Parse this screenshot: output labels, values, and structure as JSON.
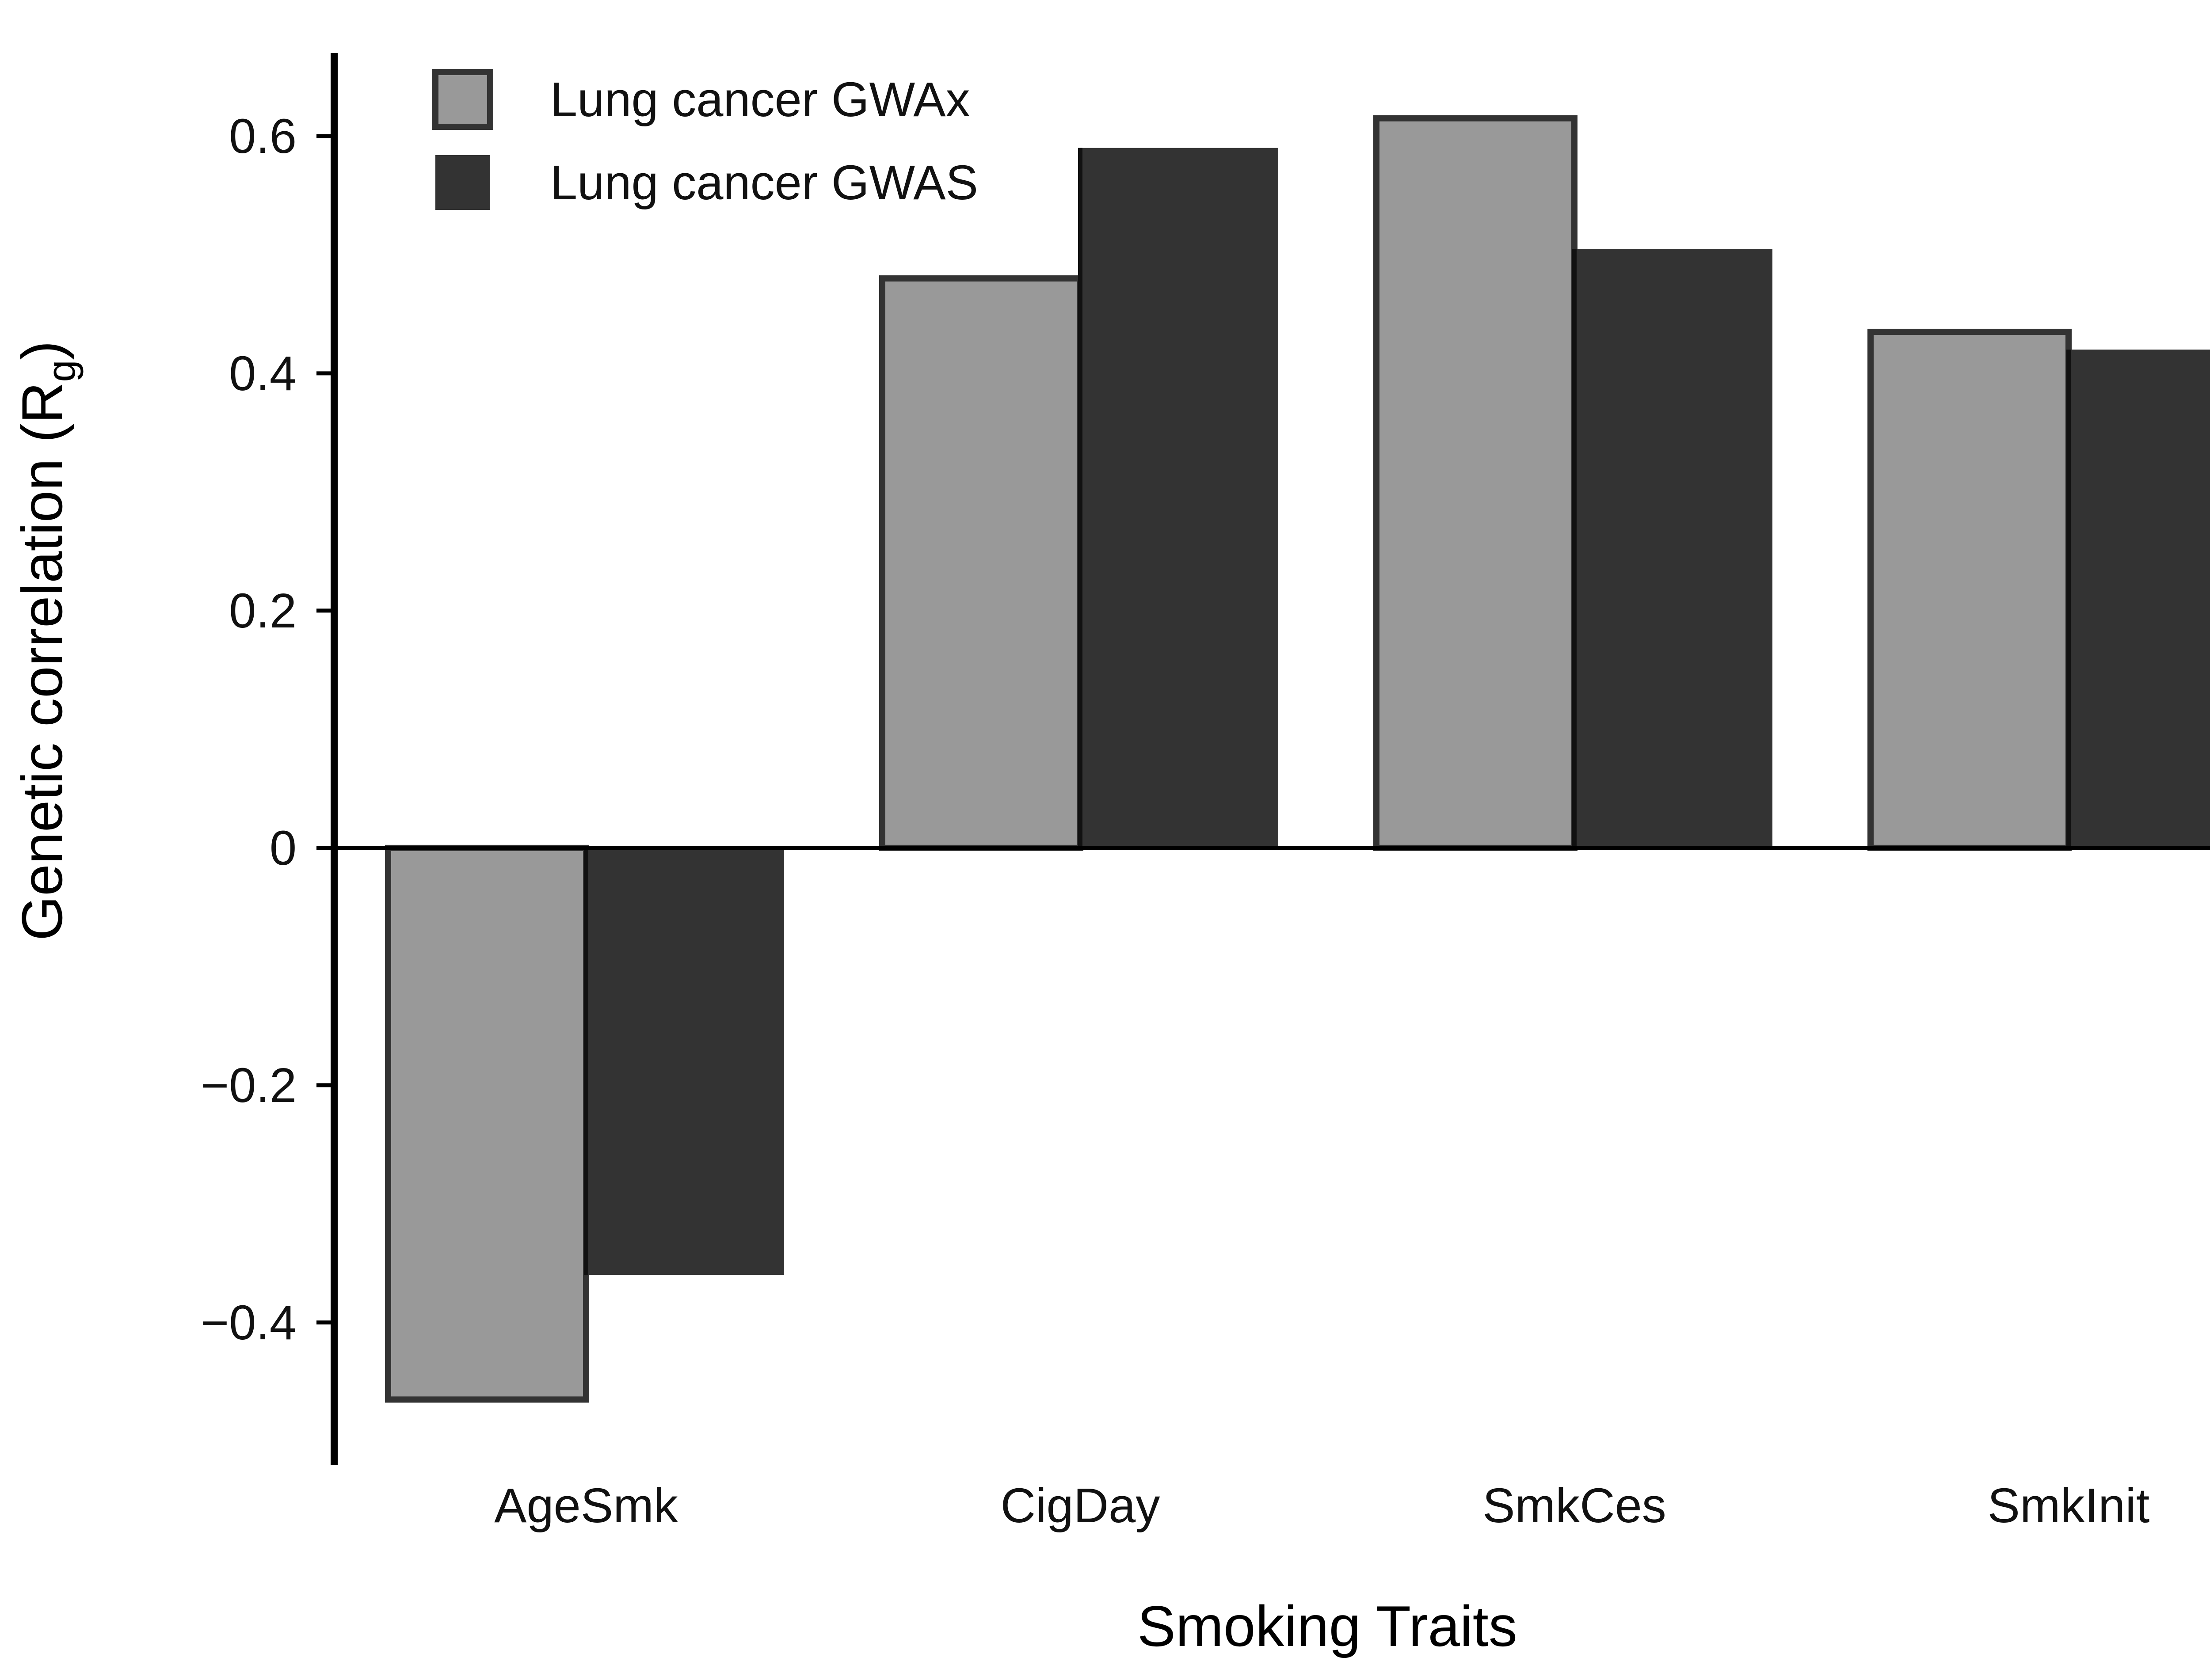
{
  "chart_data": {
    "type": "bar",
    "categories": [
      "AgeSmk",
      "CigDay",
      "SmkCes",
      "SmkInit"
    ],
    "series": [
      {
        "name": "Lung cancer GWAx",
        "values": [
          -0.465,
          0.48,
          0.615,
          0.435
        ],
        "color": "#999999",
        "stroke": "#333333"
      },
      {
        "name": "Lung cancer GWAS",
        "values": [
          -0.36,
          0.59,
          0.505,
          0.42
        ],
        "color": "#333333",
        "stroke": "#333333"
      }
    ],
    "xlabel": "Smoking Traits",
    "ylabel": "Genetic correlation (R",
    "ylabel_subscript": "g",
    "ylabel_close": ")",
    "ylim": [
      -0.52,
      0.67
    ],
    "yticks": [
      -0.4,
      -0.2,
      0,
      0.2,
      0.4,
      0.6
    ],
    "ytick_labels": [
      "−0.4",
      "−0.2",
      "0",
      "0.2",
      "0.4",
      "0.6"
    ],
    "grid": false,
    "legend_position": "top-left"
  }
}
